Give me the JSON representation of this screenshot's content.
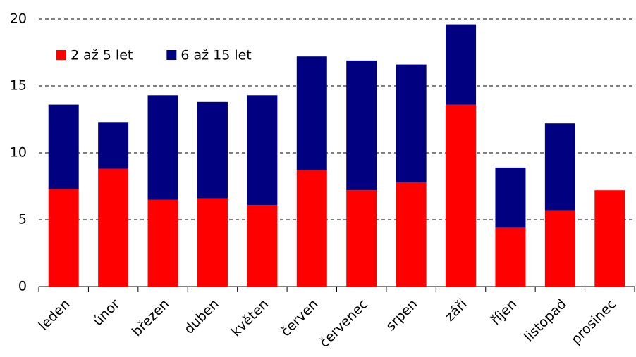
{
  "chart_data": {
    "type": "stacked_bar",
    "categories": [
      "leden",
      "únor",
      "březen",
      "duben",
      "květen",
      "červen",
      "červenec",
      "srpen",
      "září",
      "říjen",
      "listopad",
      "prosinec"
    ],
    "series": [
      {
        "name": "2 až 5 let",
        "color": "#ff0000",
        "values": [
          7.3,
          8.8,
          6.5,
          6.6,
          6.1,
          8.7,
          7.2,
          7.8,
          13.6,
          4.4,
          5.7,
          7.2
        ]
      },
      {
        "name": "6 až 15 let",
        "color": "#000080",
        "values": [
          6.3,
          3.5,
          7.8,
          7.2,
          8.2,
          8.5,
          9.7,
          8.8,
          6.0,
          4.5,
          6.5,
          0
        ]
      }
    ],
    "ylim": [
      0,
      20
    ],
    "yticks": [
      0,
      5,
      10,
      15,
      20
    ],
    "grid": true,
    "legend": "top-left"
  }
}
